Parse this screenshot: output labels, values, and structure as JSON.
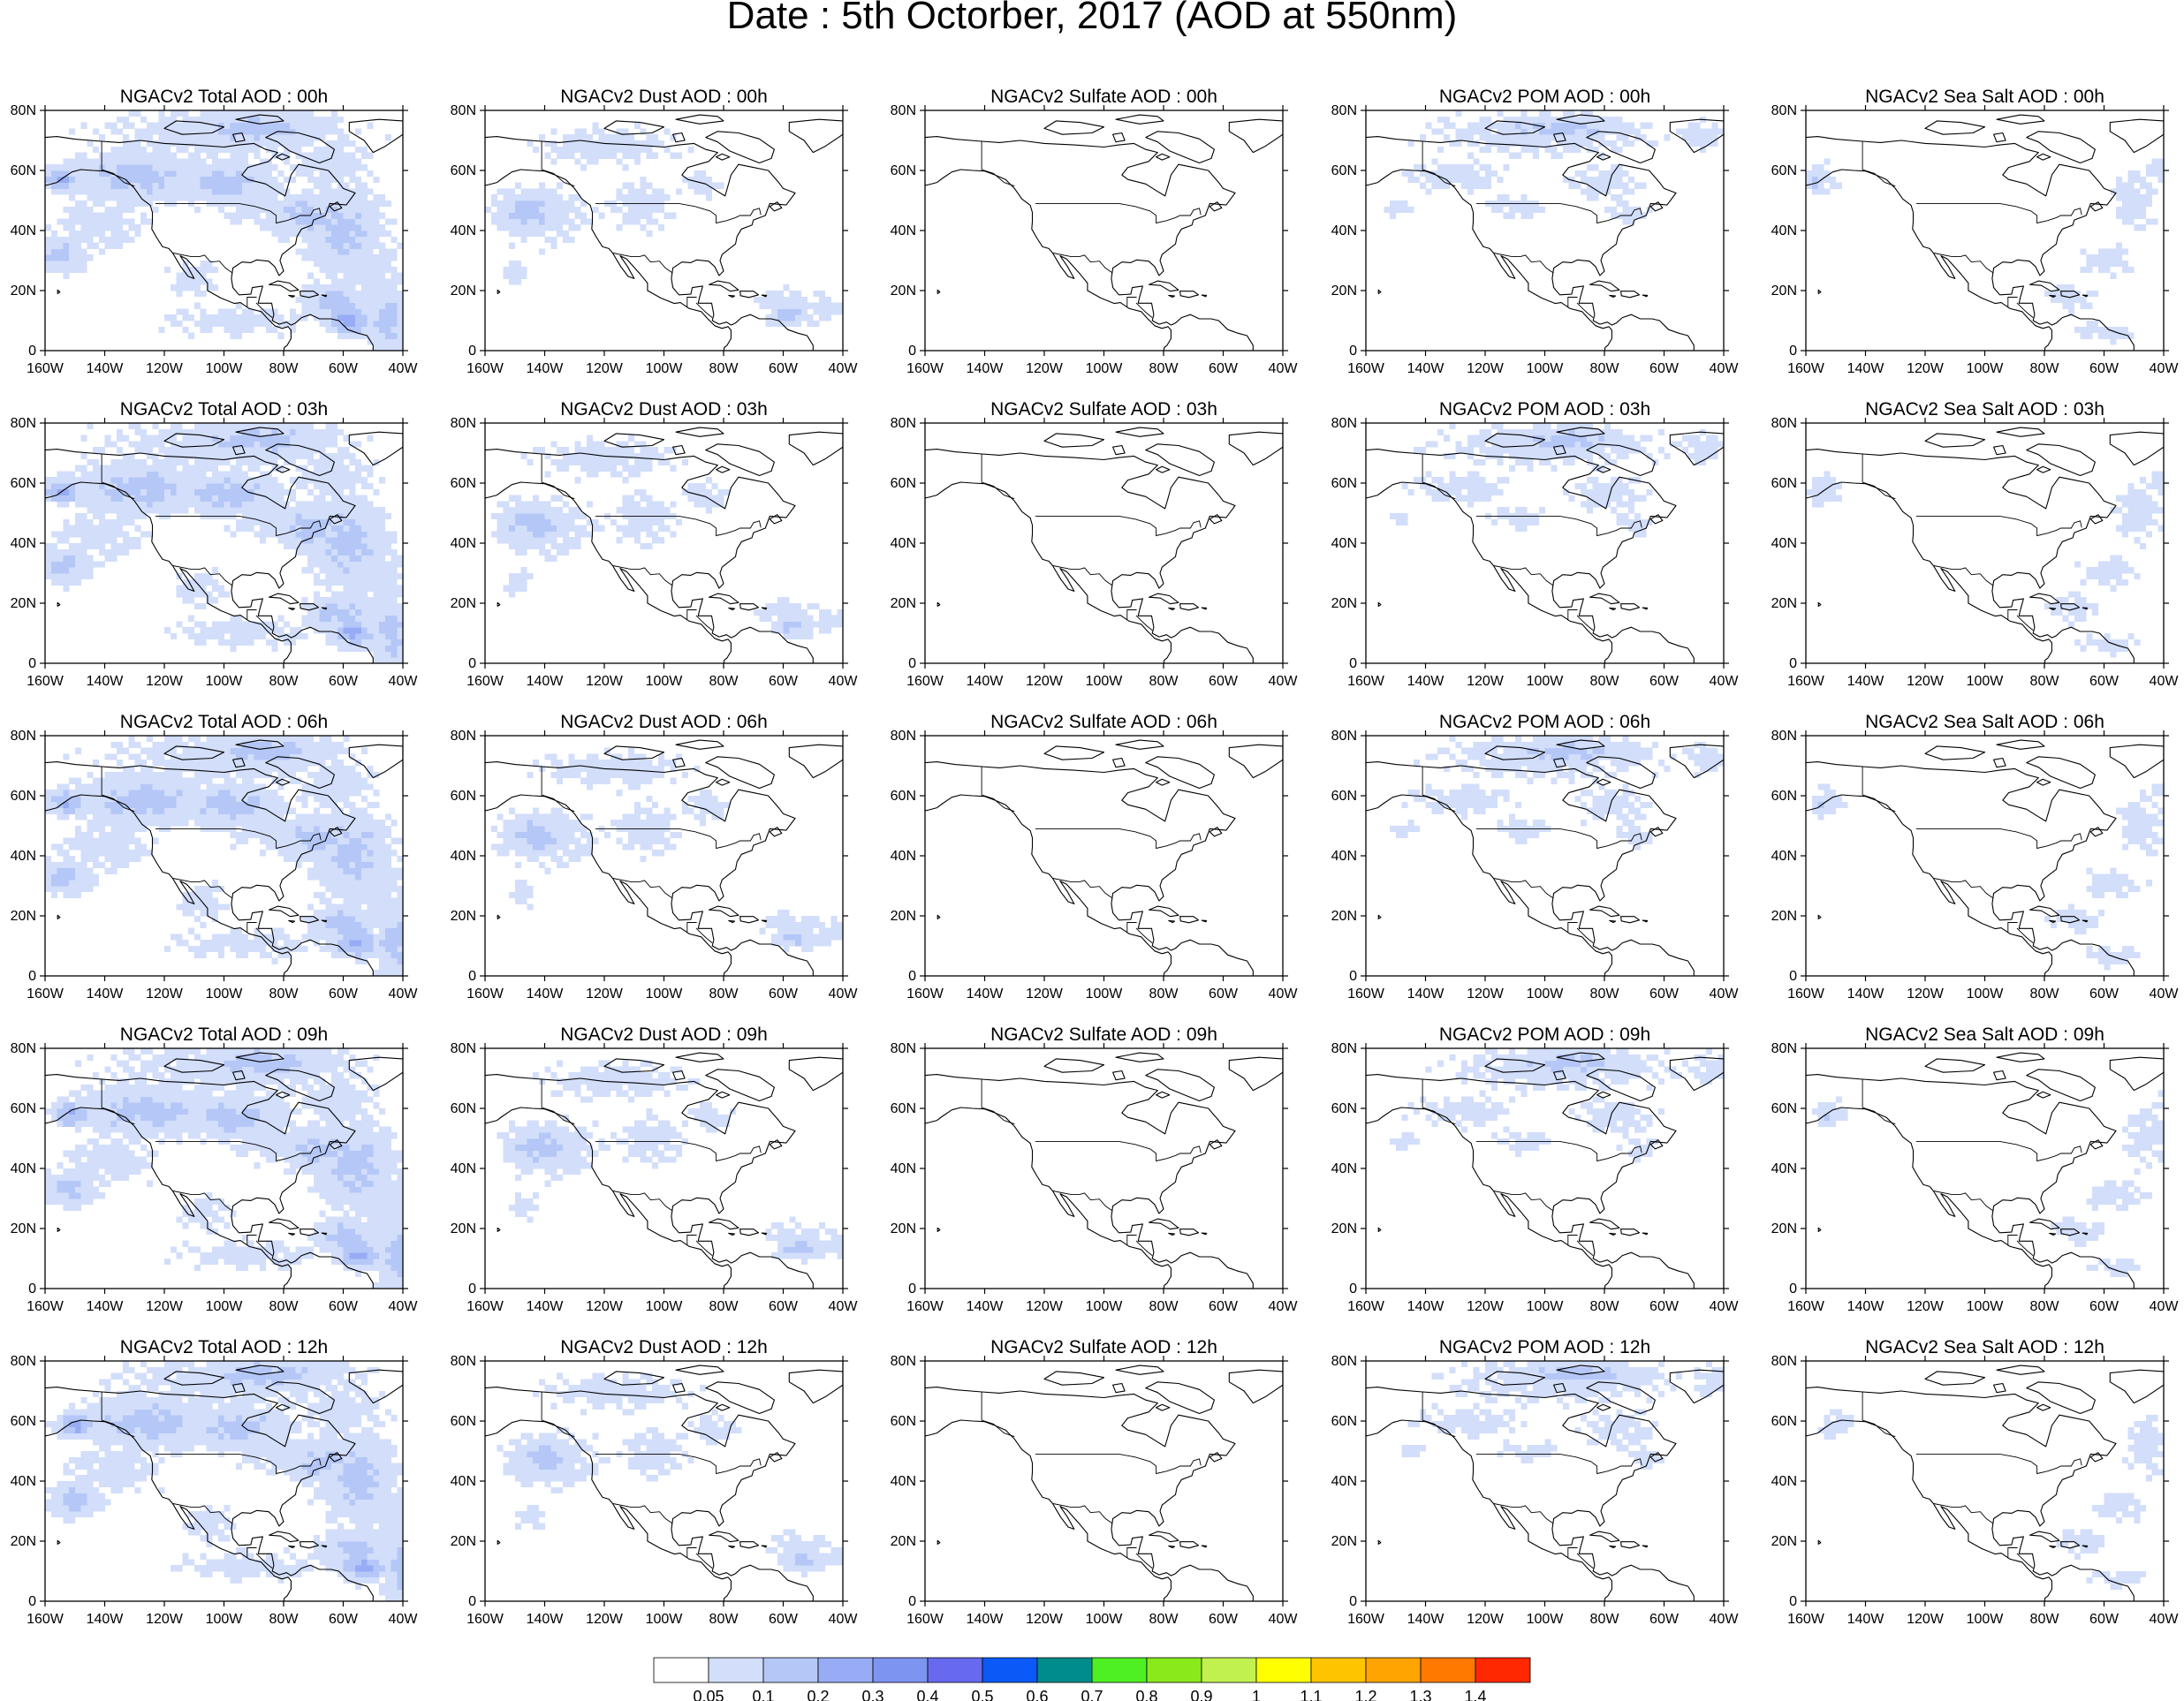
{
  "title": "Date : 5th Octorber, 2017 (AOD at 550nm)",
  "panel_titles": [
    [
      "NGACv2 Total AOD : 00h",
      "NGACv2 Dust AOD : 00h",
      "NGACv2 Sulfate AOD : 00h",
      "NGACv2 POM AOD : 00h",
      "NGACv2 Sea Salt AOD : 00h"
    ],
    [
      "NGACv2 Total AOD : 03h",
      "NGACv2 Dust AOD : 03h",
      "NGACv2 Sulfate AOD : 03h",
      "NGACv2 POM AOD : 03h",
      "NGACv2 Sea Salt AOD : 03h"
    ],
    [
      "NGACv2 Total AOD : 06h",
      "NGACv2 Dust AOD : 06h",
      "NGACv2 Sulfate AOD : 06h",
      "NGACv2 POM AOD : 06h",
      "NGACv2 Sea Salt AOD : 06h"
    ],
    [
      "NGACv2 Total AOD : 09h",
      "NGACv2 Dust AOD : 09h",
      "NGACv2 Sulfate AOD : 09h",
      "NGACv2 POM AOD : 09h",
      "NGACv2 Sea Salt  AOD : 09h"
    ],
    [
      "NGACv2 Total AOD  : 12h",
      "NGACv2 Dust AOD : 12h",
      "NGACv2 Sulfate AOD : 12h",
      "NGACv2 POM  AOD : 12h",
      "NGACv2 Sea Salt  AOD : 12h"
    ]
  ],
  "species": [
    "total",
    "dust",
    "sulfate",
    "pom",
    "seasalt"
  ],
  "forecast_hours": [
    "00h",
    "03h",
    "06h",
    "09h",
    "12h"
  ],
  "map": {
    "lon_range": [
      -160,
      -40
    ],
    "lat_range": [
      0,
      80
    ],
    "x_ticks": [
      -160,
      -140,
      -120,
      -100,
      -80,
      -60,
      -40
    ],
    "x_tick_labels": [
      "160W",
      "140W",
      "120W",
      "100W",
      "80W",
      "60W",
      "40W"
    ],
    "y_ticks": [
      0,
      20,
      40,
      60,
      80
    ],
    "y_tick_labels": [
      "0",
      "20N",
      "40N",
      "60N",
      "80N"
    ]
  },
  "colorbar": {
    "colors": [
      "#ffffff",
      "#d2defa",
      "#b4c7f7",
      "#97acf5",
      "#7e94f1",
      "#6769ee",
      "#0b5af8",
      "#008c8c",
      "#4ef023",
      "#89ea1b",
      "#c1f14f",
      "#ffff00",
      "#ffc400",
      "#ffa400",
      "#ff7800",
      "#ff2800"
    ],
    "labels": [
      "0.05",
      "0.1",
      "0.2",
      "0.3",
      "0.4",
      "0.5",
      "0.6",
      "0.7",
      "0.8",
      "0.9",
      "1",
      "1.1",
      "1.2",
      "1.3",
      "1.4"
    ]
  },
  "coastline_color": "#000000"
}
